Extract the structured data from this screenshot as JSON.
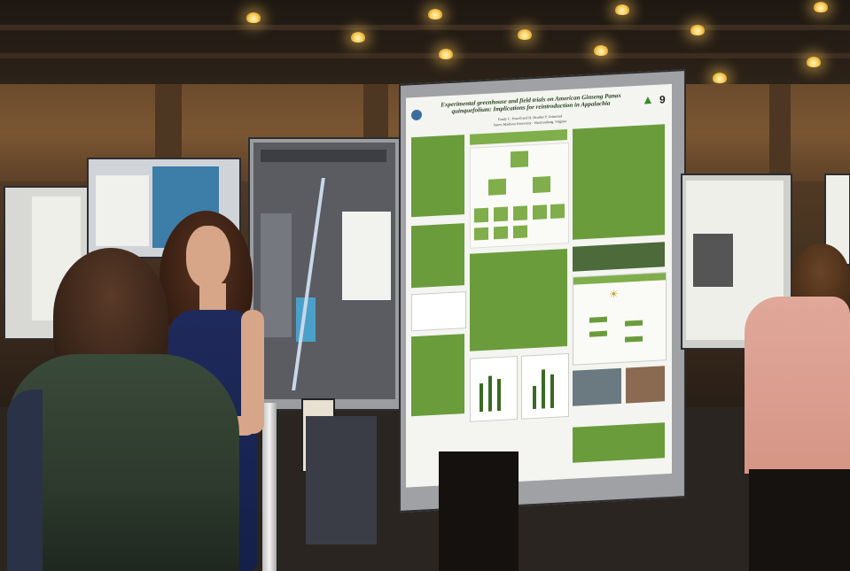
{
  "scene": {
    "description_free": true,
    "poster": {
      "title": "Experimental greenhouse and field trials on American Ginseng Panax quinquefolium: Implications for reintroduction in Appalachia",
      "authors": "Emily C. Powell and H. Heather P. Grimsrud",
      "affiliation": "James Madison University · Harrisonburg, Virginia",
      "board_number": "9"
    },
    "colors": {
      "poster_green": "#6a9c3c",
      "dress_navy": "#1f2a5c",
      "sweater_green": "#2d3a2d",
      "blouse_pink": "#e0a89a"
    }
  }
}
